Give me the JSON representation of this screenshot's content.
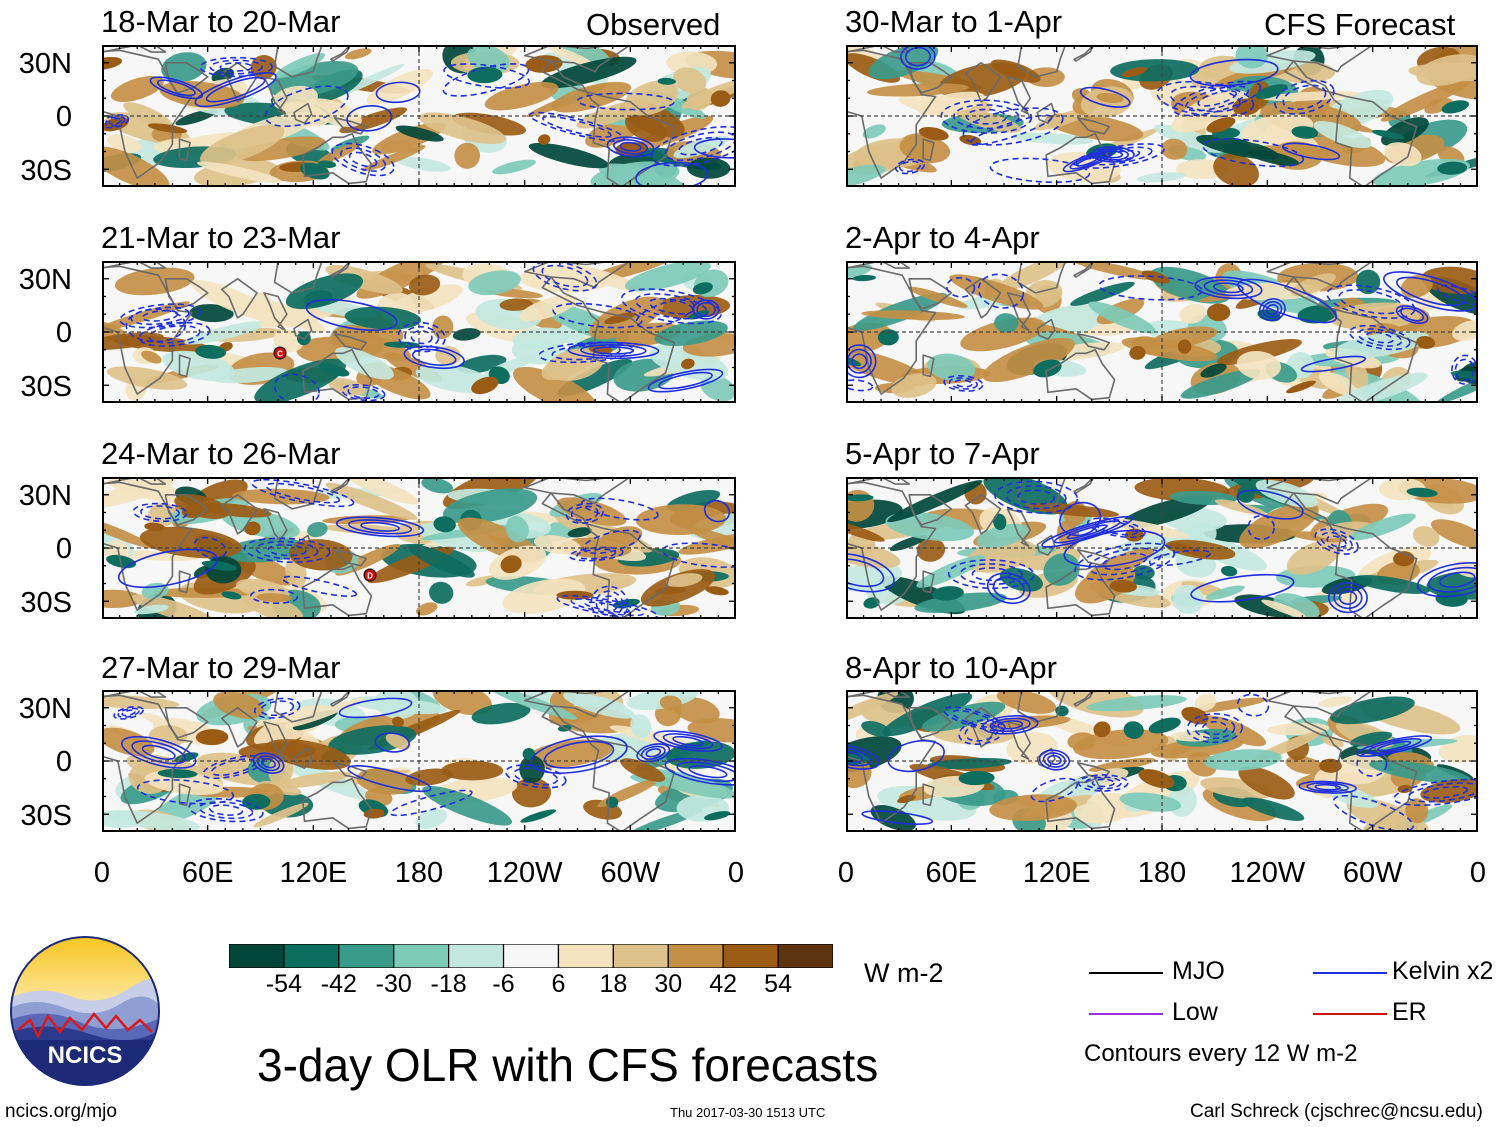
{
  "title": "3-day OLR with CFS forecasts",
  "chart_data": {
    "type": "heatmap",
    "observed_label": "Observed",
    "forecast_label": "CFS Forecast",
    "latitude_ticks": [
      "30N",
      "0",
      "30S"
    ],
    "longitude_ticks": [
      "0",
      "60E",
      "120E",
      "180",
      "120W",
      "60W",
      "0"
    ],
    "panels": [
      {
        "period": "18-Mar to 20-Mar",
        "kind": "Observed"
      },
      {
        "period": "21-Mar to 23-Mar",
        "kind": "Observed",
        "marker": "C"
      },
      {
        "period": "24-Mar to 26-Mar",
        "kind": "Observed",
        "marker": "D"
      },
      {
        "period": "27-Mar to 29-Mar",
        "kind": "Observed"
      },
      {
        "period": "30-Mar to 1-Apr",
        "kind": "CFS Forecast"
      },
      {
        "period": "2-Apr to 4-Apr",
        "kind": "CFS Forecast"
      },
      {
        "period": "5-Apr to 7-Apr",
        "kind": "CFS Forecast"
      },
      {
        "period": "8-Apr to 10-Apr",
        "kind": "CFS Forecast"
      }
    ],
    "colorbar": {
      "unit": "W m-2",
      "levels": [
        "-54",
        "-42",
        "-30",
        "-18",
        "-6",
        "6",
        "18",
        "30",
        "42",
        "54"
      ],
      "colors": [
        "#00463a",
        "#0d6d5f",
        "#3a9a8a",
        "#7ecab9",
        "#c3e8df",
        "#f7f7f7",
        "#f3e3bf",
        "#ddc18a",
        "#c38f45",
        "#9a5c15",
        "#5e3410"
      ]
    },
    "legend": {
      "items": [
        {
          "label": "MJO",
          "color": "#000000"
        },
        {
          "label": "Kelvin x2",
          "color": "#1f2ee0"
        },
        {
          "label": "Low",
          "color": "#9b30e0"
        },
        {
          "label": "ER",
          "color": "#d01010"
        }
      ],
      "contour_note": "Contours every 12 W m-2"
    }
  },
  "logo": {
    "text": "NCICS"
  },
  "footer": {
    "url": "ncics.org/mjo",
    "timestamp": "Thu 2017-03-30 1513 UTC",
    "credit": "Carl Schreck (cjschrec@ncsu.edu)"
  }
}
